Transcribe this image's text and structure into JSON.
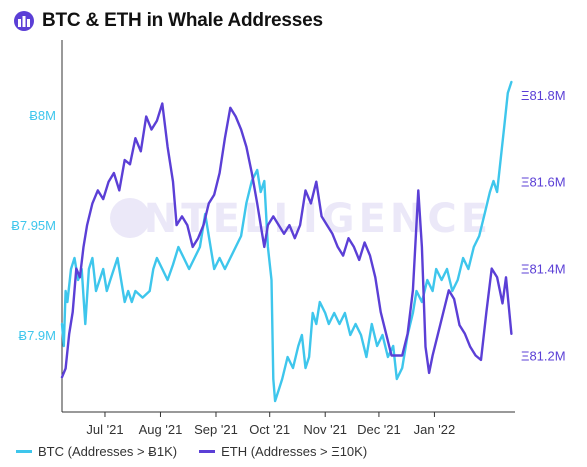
{
  "header": {
    "title": "BTC & ETH in Whale Addresses",
    "logo_icon": "intotheblock-logo-icon"
  },
  "watermark": {
    "text": "INTELLIGENCE"
  },
  "colors": {
    "btc": "#3EC6EC",
    "eth": "#5B3FD6",
    "axis": "#333333",
    "grid": "#dddddd"
  },
  "chart_data": {
    "type": "line",
    "title": "BTC & ETH in Whale Addresses",
    "x_ticks": [
      "Jul '21",
      "Aug '21",
      "Sep '21",
      "Oct '21",
      "Nov '21",
      "Dec '21",
      "Jan '22"
    ],
    "y_left": {
      "ticks": [
        7.9,
        7.95,
        8.0
      ],
      "tick_labels": [
        "Ƀ7.9M",
        "Ƀ7.95M",
        "Ƀ8M"
      ],
      "range": [
        7.865,
        8.025
      ]
    },
    "y_right": {
      "ticks": [
        81.2,
        81.4,
        81.6,
        81.8
      ],
      "tick_labels": [
        "Ξ81.2M",
        "Ξ81.4M",
        "Ξ81.6M",
        "Ξ81.8M"
      ],
      "range": [
        81.07,
        81.88
      ]
    },
    "grid": false,
    "legend_position": "bottom-left",
    "series": [
      {
        "name": "BTC (Addresses > Ƀ1K)",
        "axis": "left",
        "unit": "M BTC",
        "points": [
          [
            "2021-06-07",
            7.905
          ],
          [
            "2021-06-08",
            7.895
          ],
          [
            "2021-06-09",
            7.92
          ],
          [
            "2021-06-10",
            7.915
          ],
          [
            "2021-06-12",
            7.93
          ],
          [
            "2021-06-14",
            7.935
          ],
          [
            "2021-06-16",
            7.925
          ],
          [
            "2021-06-18",
            7.93
          ],
          [
            "2021-06-20",
            7.905
          ],
          [
            "2021-06-22",
            7.93
          ],
          [
            "2021-06-24",
            7.935
          ],
          [
            "2021-06-26",
            7.92
          ],
          [
            "2021-06-28",
            7.925
          ],
          [
            "2021-06-30",
            7.93
          ],
          [
            "2021-07-02",
            7.92
          ],
          [
            "2021-07-04",
            7.925
          ],
          [
            "2021-07-06",
            7.93
          ],
          [
            "2021-07-08",
            7.935
          ],
          [
            "2021-07-10",
            7.925
          ],
          [
            "2021-07-12",
            7.915
          ],
          [
            "2021-07-14",
            7.92
          ],
          [
            "2021-07-16",
            7.915
          ],
          [
            "2021-07-18",
            7.92
          ],
          [
            "2021-07-22",
            7.917
          ],
          [
            "2021-07-26",
            7.92
          ],
          [
            "2021-07-28",
            7.93
          ],
          [
            "2021-07-30",
            7.935
          ],
          [
            "2021-08-02",
            7.93
          ],
          [
            "2021-08-05",
            7.925
          ],
          [
            "2021-08-08",
            7.932
          ],
          [
            "2021-08-11",
            7.94
          ],
          [
            "2021-08-14",
            7.935
          ],
          [
            "2021-08-17",
            7.93
          ],
          [
            "2021-08-20",
            7.935
          ],
          [
            "2021-08-23",
            7.94
          ],
          [
            "2021-08-26",
            7.955
          ],
          [
            "2021-08-28",
            7.945
          ],
          [
            "2021-08-31",
            7.93
          ],
          [
            "2021-09-03",
            7.935
          ],
          [
            "2021-09-06",
            7.93
          ],
          [
            "2021-09-09",
            7.935
          ],
          [
            "2021-09-12",
            7.94
          ],
          [
            "2021-09-15",
            7.945
          ],
          [
            "2021-09-18",
            7.96
          ],
          [
            "2021-09-21",
            7.97
          ],
          [
            "2021-09-24",
            7.975
          ],
          [
            "2021-09-26",
            7.965
          ],
          [
            "2021-09-28",
            7.97
          ],
          [
            "2021-09-30",
            7.94
          ],
          [
            "2021-10-02",
            7.925
          ],
          [
            "2021-10-03",
            7.88
          ],
          [
            "2021-10-04",
            7.87
          ],
          [
            "2021-10-06",
            7.875
          ],
          [
            "2021-10-08",
            7.88
          ],
          [
            "2021-10-11",
            7.89
          ],
          [
            "2021-10-14",
            7.885
          ],
          [
            "2021-10-17",
            7.895
          ],
          [
            "2021-10-19",
            7.9
          ],
          [
            "2021-10-21",
            7.885
          ],
          [
            "2021-10-23",
            7.89
          ],
          [
            "2021-10-25",
            7.91
          ],
          [
            "2021-10-27",
            7.905
          ],
          [
            "2021-10-29",
            7.915
          ],
          [
            "2021-11-01",
            7.91
          ],
          [
            "2021-11-03",
            7.905
          ],
          [
            "2021-11-06",
            7.91
          ],
          [
            "2021-11-09",
            7.905
          ],
          [
            "2021-11-12",
            7.91
          ],
          [
            "2021-11-15",
            7.9
          ],
          [
            "2021-11-18",
            7.905
          ],
          [
            "2021-11-21",
            7.9
          ],
          [
            "2021-11-24",
            7.89
          ],
          [
            "2021-11-27",
            7.905
          ],
          [
            "2021-11-30",
            7.895
          ],
          [
            "2021-12-03",
            7.9
          ],
          [
            "2021-12-06",
            7.89
          ],
          [
            "2021-12-09",
            7.895
          ],
          [
            "2021-12-11",
            7.88
          ],
          [
            "2021-12-14",
            7.885
          ],
          [
            "2021-12-17",
            7.9
          ],
          [
            "2021-12-20",
            7.91
          ],
          [
            "2021-12-22",
            7.92
          ],
          [
            "2021-12-25",
            7.915
          ],
          [
            "2021-12-28",
            7.925
          ],
          [
            "2021-12-31",
            7.92
          ],
          [
            "2022-01-02",
            7.93
          ],
          [
            "2022-01-05",
            7.925
          ],
          [
            "2022-01-08",
            7.93
          ],
          [
            "2022-01-11",
            7.92
          ],
          [
            "2022-01-14",
            7.925
          ],
          [
            "2022-01-17",
            7.935
          ],
          [
            "2022-01-20",
            7.93
          ],
          [
            "2022-01-23",
            7.94
          ],
          [
            "2022-01-26",
            7.945
          ],
          [
            "2022-01-29",
            7.955
          ],
          [
            "2022-02-01",
            7.965
          ],
          [
            "2022-02-03",
            7.97
          ],
          [
            "2022-02-05",
            7.965
          ],
          [
            "2022-02-07",
            7.98
          ],
          [
            "2022-02-09",
            7.995
          ],
          [
            "2022-02-11",
            8.01
          ],
          [
            "2022-02-13",
            8.015
          ]
        ]
      },
      {
        "name": "ETH (Addresses > Ξ10K)",
        "axis": "right",
        "unit": "M ETH",
        "points": [
          [
            "2021-06-07",
            81.15
          ],
          [
            "2021-06-09",
            81.17
          ],
          [
            "2021-06-11",
            81.25
          ],
          [
            "2021-06-13",
            81.3
          ],
          [
            "2021-06-15",
            81.4
          ],
          [
            "2021-06-17",
            81.38
          ],
          [
            "2021-06-19",
            81.45
          ],
          [
            "2021-06-21",
            81.5
          ],
          [
            "2021-06-24",
            81.55
          ],
          [
            "2021-06-27",
            81.58
          ],
          [
            "2021-06-30",
            81.56
          ],
          [
            "2021-07-03",
            81.6
          ],
          [
            "2021-07-06",
            81.62
          ],
          [
            "2021-07-09",
            81.58
          ],
          [
            "2021-07-12",
            81.65
          ],
          [
            "2021-07-15",
            81.64
          ],
          [
            "2021-07-18",
            81.7
          ],
          [
            "2021-07-21",
            81.67
          ],
          [
            "2021-07-24",
            81.75
          ],
          [
            "2021-07-27",
            81.72
          ],
          [
            "2021-07-30",
            81.74
          ],
          [
            "2021-08-02",
            81.78
          ],
          [
            "2021-08-05",
            81.68
          ],
          [
            "2021-08-08",
            81.6
          ],
          [
            "2021-08-10",
            81.5
          ],
          [
            "2021-08-13",
            81.52
          ],
          [
            "2021-08-16",
            81.5
          ],
          [
            "2021-08-19",
            81.45
          ],
          [
            "2021-08-22",
            81.47
          ],
          [
            "2021-08-25",
            81.5
          ],
          [
            "2021-08-28",
            81.55
          ],
          [
            "2021-08-31",
            81.57
          ],
          [
            "2021-09-03",
            81.62
          ],
          [
            "2021-09-06",
            81.7
          ],
          [
            "2021-09-09",
            81.77
          ],
          [
            "2021-09-12",
            81.75
          ],
          [
            "2021-09-15",
            81.72
          ],
          [
            "2021-09-18",
            81.68
          ],
          [
            "2021-09-21",
            81.62
          ],
          [
            "2021-09-24",
            81.55
          ],
          [
            "2021-09-26",
            81.5
          ],
          [
            "2021-09-28",
            81.45
          ],
          [
            "2021-09-30",
            81.5
          ],
          [
            "2021-10-03",
            81.52
          ],
          [
            "2021-10-06",
            81.5
          ],
          [
            "2021-10-09",
            81.48
          ],
          [
            "2021-10-12",
            81.5
          ],
          [
            "2021-10-15",
            81.47
          ],
          [
            "2021-10-18",
            81.5
          ],
          [
            "2021-10-21",
            81.58
          ],
          [
            "2021-10-24",
            81.55
          ],
          [
            "2021-10-27",
            81.6
          ],
          [
            "2021-10-30",
            81.52
          ],
          [
            "2021-11-02",
            81.5
          ],
          [
            "2021-11-05",
            81.48
          ],
          [
            "2021-11-08",
            81.45
          ],
          [
            "2021-11-11",
            81.43
          ],
          [
            "2021-11-14",
            81.47
          ],
          [
            "2021-11-17",
            81.45
          ],
          [
            "2021-11-20",
            81.42
          ],
          [
            "2021-11-23",
            81.46
          ],
          [
            "2021-11-26",
            81.43
          ],
          [
            "2021-11-29",
            81.38
          ],
          [
            "2021-12-02",
            81.3
          ],
          [
            "2021-12-05",
            81.25
          ],
          [
            "2021-12-08",
            81.2
          ],
          [
            "2021-12-11",
            81.2
          ],
          [
            "2021-12-14",
            81.2
          ],
          [
            "2021-12-17",
            81.25
          ],
          [
            "2021-12-20",
            81.35
          ],
          [
            "2021-12-23",
            81.58
          ],
          [
            "2021-12-25",
            81.45
          ],
          [
            "2021-12-27",
            81.22
          ],
          [
            "2021-12-29",
            81.16
          ],
          [
            "2021-12-31",
            81.2
          ],
          [
            "2022-01-03",
            81.25
          ],
          [
            "2022-01-06",
            81.3
          ],
          [
            "2022-01-09",
            81.35
          ],
          [
            "2022-01-12",
            81.33
          ],
          [
            "2022-01-15",
            81.27
          ],
          [
            "2022-01-18",
            81.25
          ],
          [
            "2022-01-21",
            81.22
          ],
          [
            "2022-01-24",
            81.2
          ],
          [
            "2022-01-27",
            81.19
          ],
          [
            "2022-01-30",
            81.3
          ],
          [
            "2022-02-02",
            81.4
          ],
          [
            "2022-02-05",
            81.38
          ],
          [
            "2022-02-08",
            81.32
          ],
          [
            "2022-02-10",
            81.38
          ],
          [
            "2022-02-13",
            81.25
          ]
        ]
      }
    ],
    "x_range": [
      "2021-06-07",
      "2022-02-15"
    ],
    "x_tick_dates": [
      "2021-07-01",
      "2021-08-01",
      "2021-09-01",
      "2021-10-01",
      "2021-11-01",
      "2021-12-01",
      "2022-01-01"
    ]
  },
  "legend": {
    "btc_label": "BTC (Addresses > Ƀ1K)",
    "eth_label": "ETH (Addresses > Ξ10K)"
  }
}
